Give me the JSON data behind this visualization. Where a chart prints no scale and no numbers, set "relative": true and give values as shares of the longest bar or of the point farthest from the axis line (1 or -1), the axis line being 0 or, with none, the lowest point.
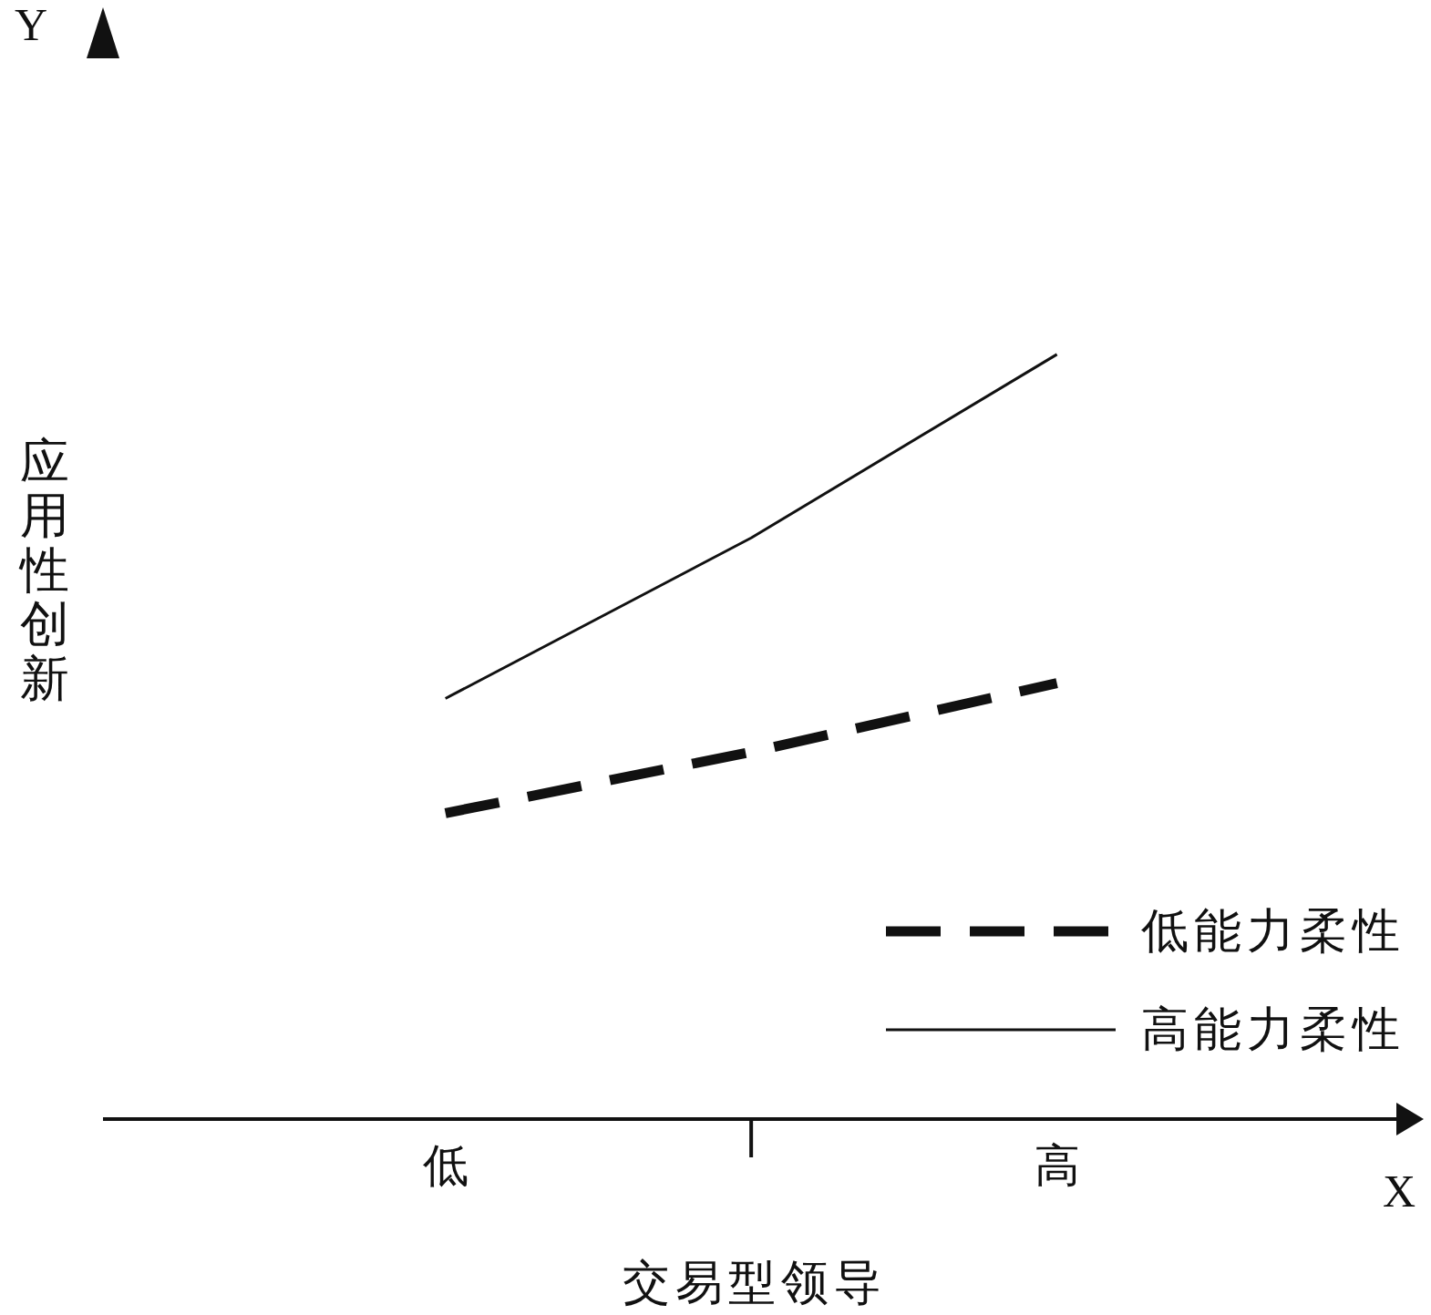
{
  "chart_data": {
    "type": "line",
    "xlabel": "交易型领导",
    "ylabel": "应用性创新",
    "annotations": [
      "Y",
      "X"
    ],
    "relative": true,
    "categories": [
      "低",
      null,
      "高"
    ],
    "legend": "bottom right",
    "marker": "none",
    "series": [
      {
        "name": "低能力柔性",
        "color": "#111111",
        "line_style": "dashed",
        "values": [
          0.4,
          0.48,
          0.57
        ]
      },
      {
        "name": "高能力柔性",
        "color": "#111111",
        "line_style": "solid",
        "values": [
          0.55,
          0.76,
          1
        ]
      }
    ]
  }
}
